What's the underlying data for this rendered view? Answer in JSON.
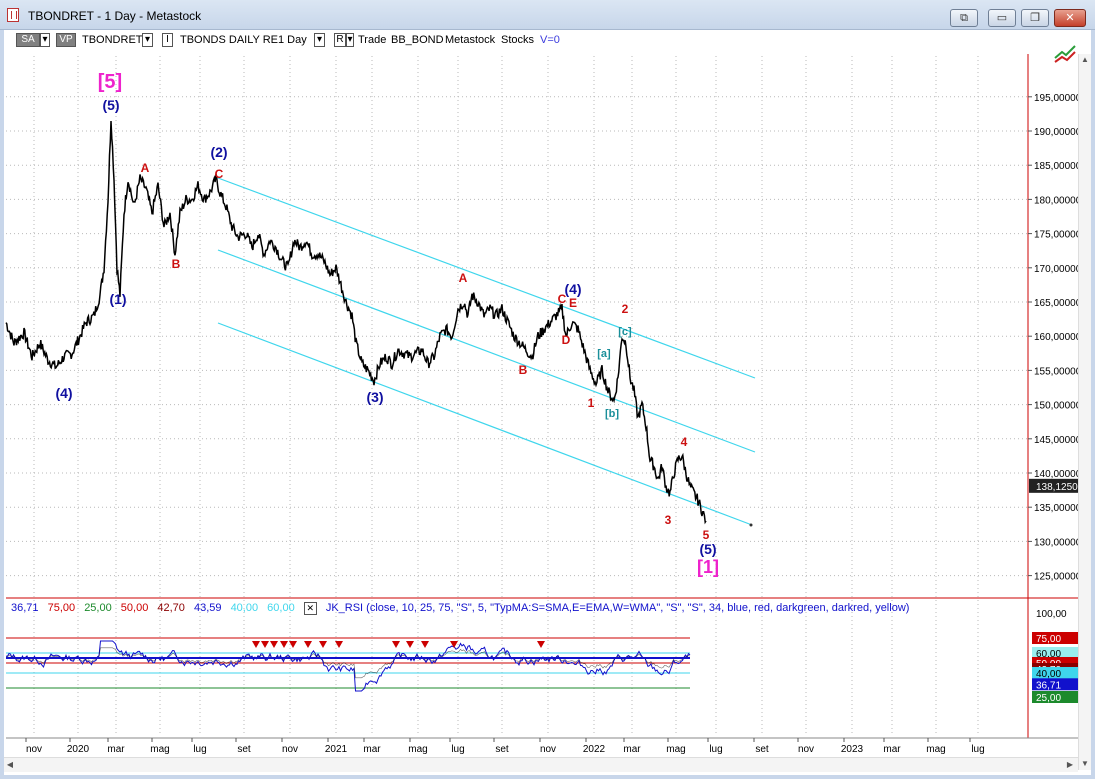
{
  "window": {
    "title": "TBONDRET - 1 Day - Metastock",
    "buttons": [
      "⧉",
      "▭",
      "❐",
      "✕"
    ]
  },
  "toolbar": {
    "sa": "SA",
    "vp": "VP",
    "symbol": "TBONDRET",
    "i_btn": "I",
    "security_name": "TBONDS DAILY RE",
    "period": "1 Day",
    "r_btn": "R",
    "trade": "Trade",
    "system": "BB_BOND",
    "source": "Metastock",
    "type": "Stocks",
    "volume": "V=0",
    "dropdown_arrow": "▾"
  },
  "colors": {
    "price": "#000000",
    "channel": "#3fd6ec",
    "grid": "#b9b9b9",
    "wave_primary": "#1010a0",
    "wave_cycle": "#ee22cc",
    "wave_minor": "#cc1111",
    "wave_sub": "#1a8f9a",
    "rsi_blue": "#1111cc",
    "rsi_green": "#1c8a2c",
    "rsi_red": "#cc0000",
    "axis_sep": "#cc0000"
  },
  "price_axis": {
    "ticks": [
      "195,00000",
      "190,00000",
      "185,00000",
      "180,00000",
      "175,00000",
      "170,00000",
      "165,00000",
      "160,00000",
      "155,00000",
      "150,00000",
      "145,00000",
      "140,00000",
      "135,00000",
      "130,00000",
      "125,00000"
    ],
    "current": "138,12500"
  },
  "rsi_axis": {
    "tick100": "100,00",
    "values": [
      "75,00",
      "60,00",
      "50,00",
      "42,70",
      "40,00",
      "36,71",
      "25,00"
    ]
  },
  "rsi_header": {
    "values": [
      "36,71",
      "75,00",
      "25,00",
      "50,00",
      "42,70",
      "43,59",
      "40,00",
      "60,00"
    ],
    "close_icon": "✕",
    "formula": "JK_RSI   (close,  10,  25,  75,  \"S\",  5,  \"TypMA:S=SMA,E=EMA,W=WMA\",  \"S\",  \"S\",  34,  blue,  red,  darkgreen,  darkred,  yellow)"
  },
  "time_axis": {
    "labels": [
      "nov",
      "2020",
      "mar",
      "mag",
      "lug",
      "set",
      "nov",
      "2021",
      "mar",
      "mag",
      "lug",
      "set",
      "nov",
      "2022",
      "mar",
      "mag",
      "lug",
      "set",
      "nov",
      "2023",
      "mar",
      "mag",
      "lug"
    ]
  },
  "waves": [
    {
      "text": "[5]",
      "kind": "cycle"
    },
    {
      "text": "(5)",
      "kind": "primary"
    },
    {
      "text": "(2)",
      "kind": "primary"
    },
    {
      "text": "(1)",
      "kind": "primary"
    },
    {
      "text": "(4)",
      "kind": "primary"
    },
    {
      "text": "(3)",
      "kind": "primary"
    },
    {
      "text": "(4)",
      "kind": "primary"
    },
    {
      "text": "(5)",
      "kind": "primary"
    },
    {
      "text": "[1]",
      "kind": "cycle"
    },
    {
      "text": "A",
      "kind": "minor"
    },
    {
      "text": "B",
      "kind": "minor"
    },
    {
      "text": "C",
      "kind": "minor"
    },
    {
      "text": "A",
      "kind": "minor"
    },
    {
      "text": "B",
      "kind": "minor"
    },
    {
      "text": "C",
      "kind": "minor"
    },
    {
      "text": "E",
      "kind": "minor"
    },
    {
      "text": "D",
      "kind": "minor"
    },
    {
      "text": "2",
      "kind": "minor"
    },
    {
      "text": "1",
      "kind": "minor"
    },
    {
      "text": "3",
      "kind": "minor"
    },
    {
      "text": "4",
      "kind": "minor"
    },
    {
      "text": "5",
      "kind": "minor"
    },
    {
      "text": "[c]",
      "kind": "sub"
    },
    {
      "text": "[a]",
      "kind": "sub"
    },
    {
      "text": "[b]",
      "kind": "sub"
    }
  ]
}
